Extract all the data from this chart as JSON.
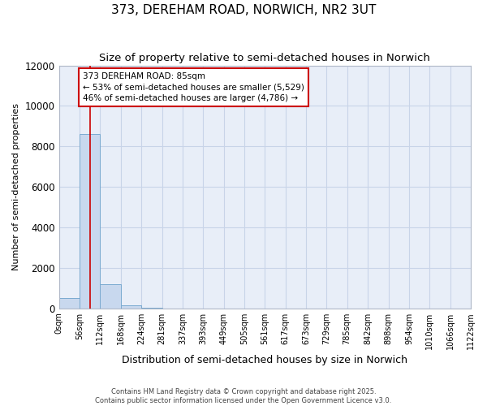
{
  "title": "373, DEREHAM ROAD, NORWICH, NR2 3UT",
  "subtitle": "Size of property relative to semi-detached houses in Norwich",
  "xlabel": "Distribution of semi-detached houses by size in Norwich",
  "ylabel": "Number of semi-detached properties",
  "bar_values": [
    500,
    8600,
    1200,
    150,
    30,
    5,
    0,
    0,
    0,
    0,
    0,
    0,
    0,
    0,
    0,
    0,
    0,
    0,
    0,
    0
  ],
  "bin_edges": [
    0,
    56,
    112,
    168,
    224,
    281,
    337,
    393,
    449,
    505,
    561,
    617,
    673,
    729,
    785,
    842,
    898,
    954,
    1010,
    1066,
    1122
  ],
  "bar_color": "#c8d8ee",
  "bar_edge_color": "#7aaad0",
  "property_size": 85,
  "property_label": "373 DEREHAM ROAD: 85sqm",
  "pct_smaller": 53,
  "n_smaller": 5529,
  "pct_larger": 46,
  "n_larger": 4786,
  "vline_color": "#cc0000",
  "annotation_box_color": "#cc0000",
  "ylim": [
    0,
    12000
  ],
  "yticks": [
    0,
    2000,
    4000,
    6000,
    8000,
    10000,
    12000
  ],
  "grid_color": "#c8d4e8",
  "bg_color": "#e8eef8",
  "footer_line1": "Contains HM Land Registry data © Crown copyright and database right 2025.",
  "footer_line2": "Contains public sector information licensed under the Open Government Licence v3.0."
}
